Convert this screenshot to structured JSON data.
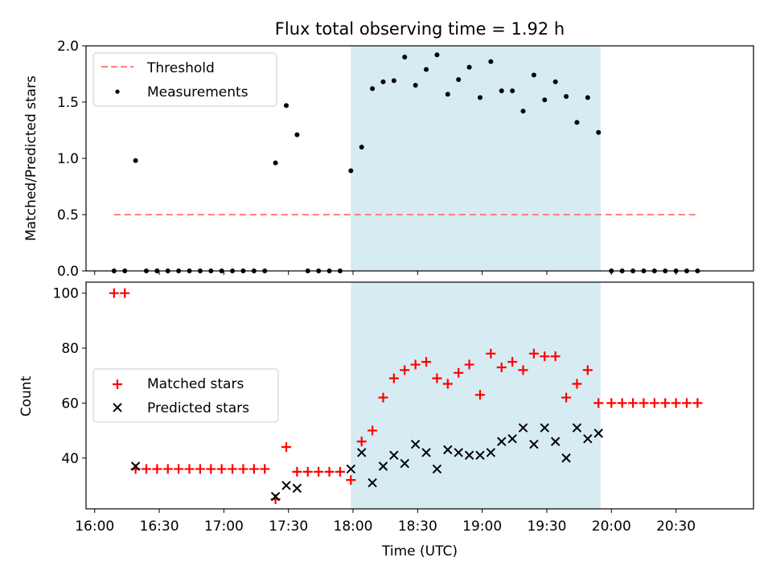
{
  "title": "Flux total observing time = 1.92 h",
  "colors": {
    "threshold": "#ff7f7f",
    "measurement": "#000000",
    "matched": "#ff0000",
    "predicted": "#000000",
    "shade": "#add8e6"
  },
  "chart_data": [
    {
      "type": "scatter",
      "panel": "top",
      "ylabel": "Matched/Predicted stars",
      "xlim": [
        "15:56",
        "21:06"
      ],
      "ylim": [
        0,
        2.0
      ],
      "yticks": [
        "0.0",
        "0.5",
        "1.0",
        "1.5",
        "2.0"
      ],
      "shaded_span": [
        "17:59",
        "19:55"
      ],
      "legend": {
        "placement": "upper-left",
        "entries": [
          "Threshold",
          "Measurements"
        ]
      },
      "threshold": {
        "name": "Threshold",
        "y": 0.5,
        "x_range": [
          "16:09",
          "20:41"
        ]
      },
      "series": [
        {
          "name": "Measurements",
          "points": [
            [
              "16:09",
              0
            ],
            [
              "16:14",
              0
            ],
            [
              "16:19",
              0.98
            ],
            [
              "16:24",
              0
            ],
            [
              "16:29",
              0
            ],
            [
              "16:34",
              0
            ],
            [
              "16:39",
              0
            ],
            [
              "16:44",
              0
            ],
            [
              "16:49",
              0
            ],
            [
              "16:54",
              0
            ],
            [
              "16:59",
              0
            ],
            [
              "17:04",
              0
            ],
            [
              "17:09",
              0
            ],
            [
              "17:14",
              0
            ],
            [
              "17:19",
              0
            ],
            [
              "17:24",
              0.96
            ],
            [
              "17:29",
              1.47
            ],
            [
              "17:34",
              1.21
            ],
            [
              "17:39",
              0
            ],
            [
              "17:44",
              0
            ],
            [
              "17:49",
              0
            ],
            [
              "17:54",
              0
            ],
            [
              "17:59",
              0.89
            ],
            [
              "18:04",
              1.1
            ],
            [
              "18:09",
              1.62
            ],
            [
              "18:14",
              1.68
            ],
            [
              "18:19",
              1.69
            ],
            [
              "18:24",
              1.9
            ],
            [
              "18:29",
              1.65
            ],
            [
              "18:34",
              1.79
            ],
            [
              "18:39",
              1.92
            ],
            [
              "18:44",
              1.57
            ],
            [
              "18:49",
              1.7
            ],
            [
              "18:54",
              1.81
            ],
            [
              "18:59",
              1.54
            ],
            [
              "19:04",
              1.86
            ],
            [
              "19:09",
              1.6
            ],
            [
              "19:14",
              1.6
            ],
            [
              "19:19",
              1.42
            ],
            [
              "19:24",
              1.74
            ],
            [
              "19:29",
              1.52
            ],
            [
              "19:34",
              1.68
            ],
            [
              "19:39",
              1.55
            ],
            [
              "19:44",
              1.32
            ],
            [
              "19:49",
              1.54
            ],
            [
              "19:54",
              1.23
            ],
            [
              "20:00",
              0
            ],
            [
              "20:05",
              0
            ],
            [
              "20:10",
              0
            ],
            [
              "20:15",
              0
            ],
            [
              "20:20",
              0
            ],
            [
              "20:25",
              0
            ],
            [
              "20:30",
              0
            ],
            [
              "20:35",
              0
            ],
            [
              "20:40",
              0
            ]
          ]
        }
      ]
    },
    {
      "type": "scatter",
      "panel": "bottom",
      "ylabel": "Count",
      "xlabel": "Time (UTC)",
      "xlim": [
        "15:56",
        "21:06"
      ],
      "ylim": [
        21.5,
        104
      ],
      "yticks": [
        "40",
        "60",
        "80",
        "100"
      ],
      "xticks": [
        "16:00",
        "16:30",
        "17:00",
        "17:30",
        "18:00",
        "18:30",
        "19:00",
        "19:30",
        "20:00",
        "20:30"
      ],
      "shaded_span": [
        "17:59",
        "19:55"
      ],
      "legend": {
        "placement": "center-left",
        "entries": [
          "Matched stars",
          "Predicted stars"
        ]
      },
      "series": [
        {
          "name": "Matched stars",
          "marker": "+",
          "points": [
            [
              "16:09",
              100
            ],
            [
              "16:14",
              100
            ],
            [
              "16:19",
              36
            ],
            [
              "16:24",
              36
            ],
            [
              "16:29",
              36
            ],
            [
              "16:34",
              36
            ],
            [
              "16:39",
              36
            ],
            [
              "16:44",
              36
            ],
            [
              "16:49",
              36
            ],
            [
              "16:54",
              36
            ],
            [
              "16:59",
              36
            ],
            [
              "17:04",
              36
            ],
            [
              "17:09",
              36
            ],
            [
              "17:14",
              36
            ],
            [
              "17:19",
              36
            ],
            [
              "17:24",
              25
            ],
            [
              "17:29",
              44
            ],
            [
              "17:34",
              35
            ],
            [
              "17:39",
              35
            ],
            [
              "17:44",
              35
            ],
            [
              "17:49",
              35
            ],
            [
              "17:54",
              35
            ],
            [
              "17:59",
              32
            ],
            [
              "18:04",
              46
            ],
            [
              "18:09",
              50
            ],
            [
              "18:14",
              62
            ],
            [
              "18:19",
              69
            ],
            [
              "18:24",
              72
            ],
            [
              "18:29",
              74
            ],
            [
              "18:34",
              75
            ],
            [
              "18:39",
              69
            ],
            [
              "18:44",
              67
            ],
            [
              "18:49",
              71
            ],
            [
              "18:54",
              74
            ],
            [
              "18:59",
              63
            ],
            [
              "19:04",
              78
            ],
            [
              "19:09",
              73
            ],
            [
              "19:14",
              75
            ],
            [
              "19:19",
              72
            ],
            [
              "19:24",
              78
            ],
            [
              "19:29",
              77
            ],
            [
              "19:34",
              77
            ],
            [
              "19:39",
              62
            ],
            [
              "19:44",
              67
            ],
            [
              "19:49",
              72
            ],
            [
              "19:54",
              60
            ],
            [
              "20:00",
              60
            ],
            [
              "20:05",
              60
            ],
            [
              "20:10",
              60
            ],
            [
              "20:15",
              60
            ],
            [
              "20:20",
              60
            ],
            [
              "20:25",
              60
            ],
            [
              "20:30",
              60
            ],
            [
              "20:35",
              60
            ],
            [
              "20:40",
              60
            ]
          ]
        },
        {
          "name": "Predicted stars",
          "marker": "x",
          "points": [
            [
              "16:19",
              37
            ],
            [
              "17:24",
              26
            ],
            [
              "17:29",
              30
            ],
            [
              "17:34",
              29
            ],
            [
              "17:59",
              36
            ],
            [
              "18:04",
              42
            ],
            [
              "18:09",
              31
            ],
            [
              "18:14",
              37
            ],
            [
              "18:19",
              41
            ],
            [
              "18:24",
              38
            ],
            [
              "18:29",
              45
            ],
            [
              "18:34",
              42
            ],
            [
              "18:39",
              36
            ],
            [
              "18:44",
              43
            ],
            [
              "18:49",
              42
            ],
            [
              "18:54",
              41
            ],
            [
              "18:59",
              41
            ],
            [
              "19:04",
              42
            ],
            [
              "19:09",
              46
            ],
            [
              "19:14",
              47
            ],
            [
              "19:19",
              51
            ],
            [
              "19:24",
              45
            ],
            [
              "19:29",
              51
            ],
            [
              "19:34",
              46
            ],
            [
              "19:39",
              40
            ],
            [
              "19:44",
              51
            ],
            [
              "19:49",
              47
            ],
            [
              "19:54",
              49
            ]
          ]
        }
      ]
    }
  ]
}
